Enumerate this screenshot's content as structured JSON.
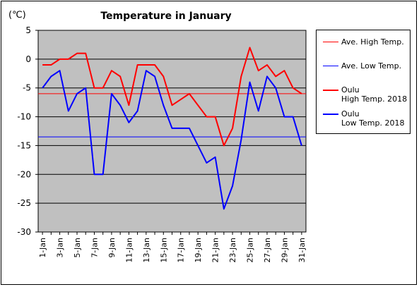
{
  "chart_data": {
    "type": "line",
    "title": "Temperature in January",
    "unit_label": "(℃)",
    "ylim": [
      -30,
      5
    ],
    "yticks": [
      5,
      0,
      -5,
      -10,
      -15,
      -20,
      -25,
      -30
    ],
    "x_tick_labels": [
      "1-Jan",
      "3-Jan",
      "5-Jan",
      "7-Jan",
      "9-Jan",
      "11-Jan",
      "13-Jan",
      "15-Jan",
      "17-Jan",
      "19-Jan",
      "21-Jan",
      "23-Jan",
      "25-Jan",
      "27-Jan",
      "29-Jan",
      "31-Jan"
    ],
    "days": 31,
    "grid": true,
    "legend_position": "right",
    "series": [
      {
        "name": "Ave. High Temp.",
        "kind": "constant",
        "value": -6.0,
        "color": "#ff0000",
        "width": 1
      },
      {
        "name": "Ave. Low Temp.",
        "kind": "constant",
        "value": -13.5,
        "color": "#0000ff",
        "width": 1
      },
      {
        "name": "Oulu\nHigh Temp. 2018",
        "kind": "daily",
        "color": "#ff0000",
        "width": 2,
        "values": [
          -1,
          -1,
          0,
          0,
          1,
          1,
          -5,
          -5,
          -2,
          -3,
          -8,
          -1,
          -1,
          -1,
          -3,
          -8,
          -7,
          -6,
          -8,
          -10,
          -10,
          -15,
          -12,
          -3,
          2,
          -2,
          -1,
          -3,
          -2,
          -5,
          -6
        ]
      },
      {
        "name": "Oulu\nLow Temp. 2018",
        "kind": "daily",
        "color": "#0000ff",
        "width": 2,
        "values": [
          -5,
          -3,
          -2,
          -9,
          -6,
          -5,
          -20,
          -20,
          -6,
          -8,
          -11,
          -9,
          -2,
          -3,
          -8,
          -12,
          -12,
          -12,
          -15,
          -18,
          -17,
          -26,
          -22,
          -14,
          -4,
          -9,
          -3,
          -5,
          -10,
          -10,
          -15
        ]
      }
    ]
  }
}
